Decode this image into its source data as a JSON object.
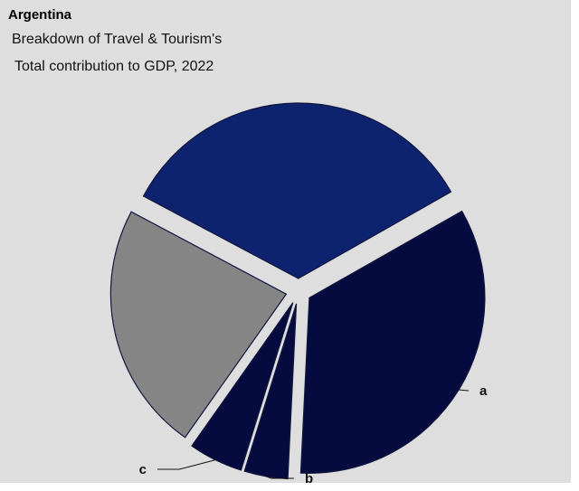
{
  "chart_data": {
    "type": "pie",
    "title": "Argentina",
    "subtitle_lines": [
      "Breakdown of Travel & Tourism's",
      "Total contribution to GDP, 2022"
    ],
    "slices": [
      {
        "label": "",
        "value": 34,
        "color": "#0d2370"
      },
      {
        "label": "a",
        "value": 34,
        "color": "#050a3f"
      },
      {
        "label": "b",
        "value": 4,
        "color": "#050a3f"
      },
      {
        "label": "c",
        "value": 5,
        "color": "#050a3f"
      },
      {
        "label": "",
        "value": 23,
        "color": "#858585"
      }
    ]
  }
}
